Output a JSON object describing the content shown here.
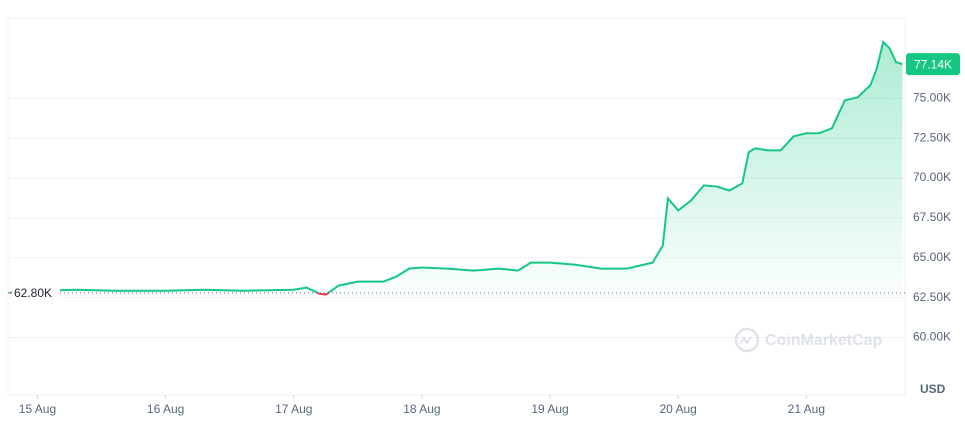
{
  "chart_data": {
    "type": "line",
    "x": [
      14.78,
      15.0,
      15.3,
      15.6,
      16.0,
      16.3,
      16.6,
      17.0,
      17.1,
      17.2,
      17.25,
      17.35,
      17.5,
      17.7,
      17.8,
      17.9,
      18.0,
      18.2,
      18.4,
      18.6,
      18.75,
      18.85,
      19.0,
      19.2,
      19.4,
      19.6,
      19.8,
      19.88,
      19.92,
      20.0,
      20.1,
      20.2,
      20.3,
      20.4,
      20.5,
      20.55,
      20.6,
      20.7,
      20.8,
      20.9,
      21.0,
      21.1,
      21.2,
      21.3,
      21.4,
      21.5,
      21.55,
      21.6,
      21.65,
      21.7,
      21.75
    ],
    "series": [
      {
        "color": "#16c784",
        "values": [
          62810,
          62940,
          63000,
          62940,
          62940,
          63000,
          62940,
          63000,
          63130,
          62750,
          62690,
          63260,
          63510,
          63510,
          63820,
          64320,
          64390,
          64320,
          64200,
          64320,
          64200,
          64700,
          64700,
          64570,
          64320,
          64320,
          64700,
          65770,
          68720,
          67970,
          68590,
          69540,
          69470,
          69220,
          69660,
          71610,
          71860,
          71730,
          71730,
          72610,
          72800,
          72800,
          73120,
          74870,
          75060,
          75820,
          76880,
          78520,
          78140,
          77260,
          77140
        ]
      }
    ],
    "below_color": "#ea3943",
    "xlim": [
      14.77,
      21.77
    ],
    "xticks": [
      {
        "value": 15,
        "label": "15 Aug"
      },
      {
        "value": 16,
        "label": "16 Aug"
      },
      {
        "value": 17,
        "label": "17 Aug"
      },
      {
        "value": 18,
        "label": "18 Aug"
      },
      {
        "value": 19,
        "label": "19 Aug"
      },
      {
        "value": 20,
        "label": "20 Aug"
      },
      {
        "value": 21,
        "label": "21 Aug"
      }
    ],
    "ylim": [
      56400,
      80030
    ],
    "yticks": [
      {
        "value": 60000,
        "label": "60.00K"
      },
      {
        "value": 62500,
        "label": "62.50K"
      },
      {
        "value": 65000,
        "label": "65.00K"
      },
      {
        "value": 67500,
        "label": "67.50K"
      },
      {
        "value": 70000,
        "label": "70.00K"
      },
      {
        "value": 72500,
        "label": "72.50K"
      },
      {
        "value": 75000,
        "label": "75.00K"
      }
    ],
    "open_price": {
      "value": 62800,
      "label": "62.80K"
    },
    "last_price": {
      "value": 77140,
      "label": "77.14K"
    },
    "currency": "USD",
    "watermark": "CoinMarketCap",
    "grid": true
  }
}
